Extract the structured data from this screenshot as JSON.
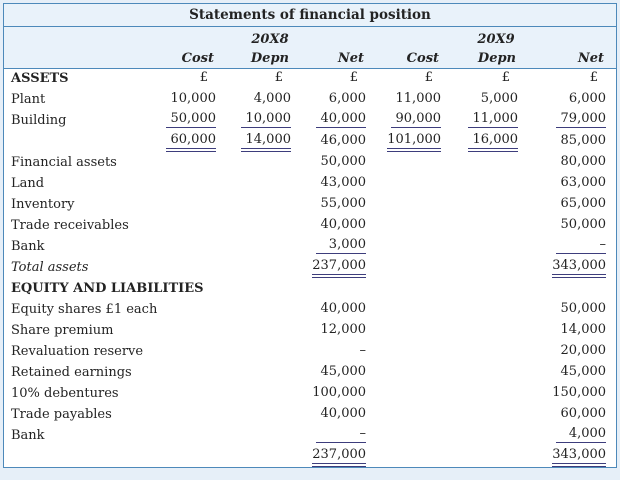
{
  "title": "Statements of financial position",
  "currency": "£",
  "years": [
    "20X8",
    "20X9"
  ],
  "col_headers": [
    "Cost",
    "Depn",
    "Net",
    "Cost",
    "Depn",
    "Net"
  ],
  "colors": {
    "page_bg": "#e6eff8",
    "border": "#4d89ba",
    "header_bg": "#e9f2fa",
    "rule": "#3d3d7c",
    "text": "#232323"
  },
  "table": {
    "rows": [
      {
        "label": "ASSETS",
        "style": "bold",
        "cells": [
          {
            "t": "£"
          },
          {
            "t": "£"
          },
          {
            "t": "£"
          },
          {
            "t": "£"
          },
          {
            "t": "£"
          },
          {
            "t": "£"
          }
        ]
      },
      {
        "label": "Plant",
        "style": "",
        "cells": [
          {
            "t": "10,000"
          },
          {
            "t": "4,000"
          },
          {
            "t": "6,000"
          },
          {
            "t": "11,000"
          },
          {
            "t": "5,000"
          },
          {
            "t": "6,000"
          }
        ]
      },
      {
        "label": "Building",
        "style": "",
        "cells": [
          {
            "t": "50,000",
            "u": "s"
          },
          {
            "t": "10,000",
            "u": "s"
          },
          {
            "t": "40,000",
            "u": "s"
          },
          {
            "t": "90,000",
            "u": "s"
          },
          {
            "t": "11,000",
            "u": "s"
          },
          {
            "t": "79,000",
            "u": "s"
          }
        ]
      },
      {
        "label": "",
        "style": "",
        "cells": [
          {
            "t": "60,000",
            "u": "d"
          },
          {
            "t": "14,000",
            "u": "d"
          },
          {
            "t": "46,000"
          },
          {
            "t": "101,000",
            "u": "d"
          },
          {
            "t": "16,000",
            "u": "d"
          },
          {
            "t": "85,000"
          }
        ]
      },
      {
        "label": "Financial assets",
        "style": "",
        "cells": [
          null,
          null,
          {
            "t": "50,000"
          },
          null,
          null,
          {
            "t": "80,000"
          }
        ]
      },
      {
        "label": "Land",
        "style": "",
        "cells": [
          null,
          null,
          {
            "t": "43,000"
          },
          null,
          null,
          {
            "t": "63,000"
          }
        ]
      },
      {
        "label": "Inventory",
        "style": "",
        "cells": [
          null,
          null,
          {
            "t": "55,000"
          },
          null,
          null,
          {
            "t": "65,000"
          }
        ]
      },
      {
        "label": "Trade receivables",
        "style": "",
        "cells": [
          null,
          null,
          {
            "t": "40,000"
          },
          null,
          null,
          {
            "t": "50,000"
          }
        ]
      },
      {
        "label": "Bank",
        "style": "",
        "cells": [
          null,
          null,
          {
            "t": "3,000",
            "u": "s"
          },
          null,
          null,
          {
            "t": "–",
            "u": "s"
          }
        ]
      },
      {
        "label": "Total assets",
        "style": "italic",
        "cells": [
          null,
          null,
          {
            "t": "237,000",
            "u": "d"
          },
          null,
          null,
          {
            "t": "343,000",
            "u": "d"
          }
        ]
      },
      {
        "label": "EQUITY AND LIABILITIES",
        "style": "bold",
        "cells": [
          null,
          null,
          null,
          null,
          null,
          null
        ]
      },
      {
        "label": "Equity shares £1 each",
        "style": "",
        "cells": [
          null,
          null,
          {
            "t": "40,000"
          },
          null,
          null,
          {
            "t": "50,000"
          }
        ]
      },
      {
        "label": "Share premium",
        "style": "",
        "cells": [
          null,
          null,
          {
            "t": "12,000"
          },
          null,
          null,
          {
            "t": "14,000"
          }
        ]
      },
      {
        "label": "Revaluation reserve",
        "style": "",
        "cells": [
          null,
          null,
          {
            "t": "–"
          },
          null,
          null,
          {
            "t": "20,000"
          }
        ]
      },
      {
        "label": "Retained earnings",
        "style": "",
        "cells": [
          null,
          null,
          {
            "t": "45,000"
          },
          null,
          null,
          {
            "t": "45,000"
          }
        ]
      },
      {
        "label": "10% debentures",
        "style": "",
        "cells": [
          null,
          null,
          {
            "t": "100,000"
          },
          null,
          null,
          {
            "t": "150,000"
          }
        ]
      },
      {
        "label": "Trade payables",
        "style": "",
        "cells": [
          null,
          null,
          {
            "t": "40,000"
          },
          null,
          null,
          {
            "t": "60,000"
          }
        ]
      },
      {
        "label": "Bank",
        "style": "",
        "cells": [
          null,
          null,
          {
            "t": "–",
            "u": "s"
          },
          null,
          null,
          {
            "t": "4,000",
            "u": "s"
          }
        ]
      },
      {
        "label": "",
        "style": "",
        "cells": [
          null,
          null,
          {
            "t": "237,000",
            "u": "d"
          },
          null,
          null,
          {
            "t": "343,000",
            "u": "d"
          }
        ]
      }
    ]
  }
}
